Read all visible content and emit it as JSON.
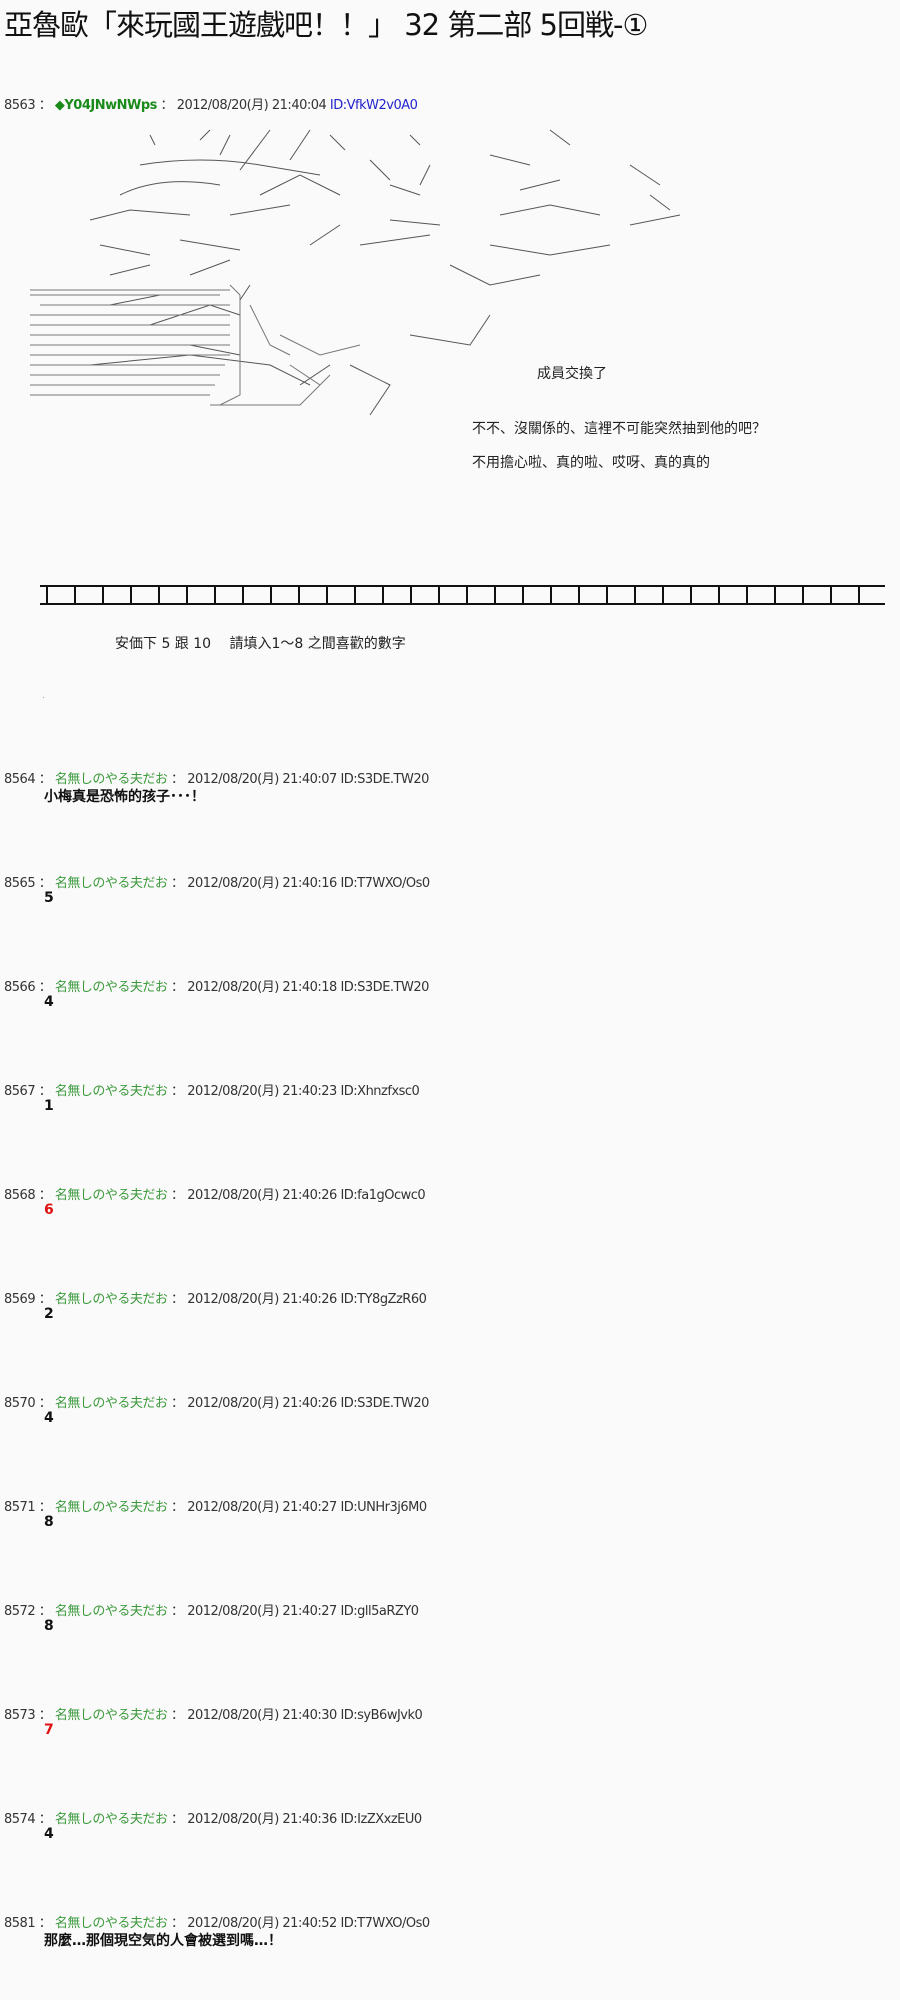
{
  "title": "亞魯歐「來玩國王遊戲吧！！」 32 第二部 5回戦-①",
  "op_post": {
    "number": "8563",
    "sep": "：",
    "trip": "◆Y04JNwNWps",
    "date": "2012/08/20(月) 21:40:04",
    "id": "ID:VfkW2v0A0",
    "aa_lines": [
      "成員交換了",
      "不不、沒關係的、這裡不可能突然抽到他的吧？",
      "不用擔心啦、真的啦、哎呀、真的真的"
    ],
    "instruction": "安価下 5 跟 10　 請填入1～8 之間喜歡的數字",
    "dot": "."
  },
  "accent_colors": {
    "name": "#3a9a3a",
    "trip": "#1a8a1a",
    "op_id": "#2222cc",
    "highlight": "#dd1111"
  },
  "posts": [
    {
      "number": "8564",
      "name": "名無しのやる夫だお",
      "date": "2012/08/20(月) 21:40:07",
      "id": "ID:S3DE.TW20",
      "body": "小梅真是恐怖的孩子･･･！",
      "highlight": false
    },
    {
      "number": "8565",
      "name": "名無しのやる夫だお",
      "date": "2012/08/20(月) 21:40:16",
      "id": "ID:T7WXO/Os0",
      "body": "5",
      "highlight": false
    },
    {
      "number": "8566",
      "name": "名無しのやる夫だお",
      "date": "2012/08/20(月) 21:40:18",
      "id": "ID:S3DE.TW20",
      "body": "4",
      "highlight": false
    },
    {
      "number": "8567",
      "name": "名無しのやる夫だお",
      "date": "2012/08/20(月) 21:40:23",
      "id": "ID:Xhnzfxsc0",
      "body": "1",
      "highlight": false
    },
    {
      "number": "8568",
      "name": "名無しのやる夫だお",
      "date": "2012/08/20(月) 21:40:26",
      "id": "ID:fa1gOcwc0",
      "body": "6",
      "highlight": true
    },
    {
      "number": "8569",
      "name": "名無しのやる夫だお",
      "date": "2012/08/20(月) 21:40:26",
      "id": "ID:TY8gZzR60",
      "body": "2",
      "highlight": false
    },
    {
      "number": "8570",
      "name": "名無しのやる夫だお",
      "date": "2012/08/20(月) 21:40:26",
      "id": "ID:S3DE.TW20",
      "body": "4",
      "highlight": false
    },
    {
      "number": "8571",
      "name": "名無しのやる夫だお",
      "date": "2012/08/20(月) 21:40:27",
      "id": "ID:UNHr3j6M0",
      "body": "8",
      "highlight": false
    },
    {
      "number": "8572",
      "name": "名無しのやる夫だお",
      "date": "2012/08/20(月) 21:40:27",
      "id": "ID:gll5aRZY0",
      "body": "8",
      "highlight": false
    },
    {
      "number": "8573",
      "name": "名無しのやる夫だお",
      "date": "2012/08/20(月) 21:40:30",
      "id": "ID:syB6wJvk0",
      "body": "7",
      "highlight": true
    },
    {
      "number": "8574",
      "name": "名無しのやる夫だお",
      "date": "2012/08/20(月) 21:40:36",
      "id": "ID:IzZXxzEU0",
      "body": "4",
      "highlight": false
    },
    {
      "number": "8581",
      "name": "名無しのやる夫だお",
      "date": "2012/08/20(月) 21:40:52",
      "id": "ID:T7WXO/Os0",
      "body": "那麼…那個現空気的人會被選到嗎…！",
      "highlight": false
    }
  ]
}
